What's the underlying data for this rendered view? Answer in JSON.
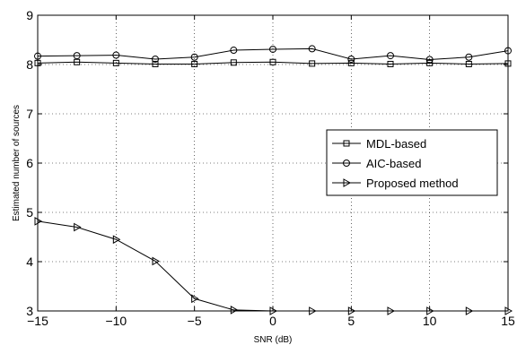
{
  "chart_data": {
    "type": "line",
    "xlabel": "SNR (dB)",
    "ylabel": "Estimated number of sources",
    "xlim": [
      -15,
      15
    ],
    "ylim": [
      3,
      9
    ],
    "xticks": [
      -15,
      -10,
      -5,
      0,
      5,
      10,
      15
    ],
    "yticks": [
      3,
      4,
      5,
      6,
      7,
      8,
      9
    ],
    "grid": true,
    "legend_position": "center-right",
    "x": [
      -15,
      -12.5,
      -10,
      -7.5,
      -5,
      -2.5,
      0,
      2.5,
      5,
      7.5,
      10,
      12.5,
      15
    ],
    "series": [
      {
        "name": "MDL-based",
        "marker": "square",
        "values": [
          8.03,
          8.05,
          8.03,
          8.01,
          8.01,
          8.04,
          8.05,
          8.02,
          8.03,
          8.01,
          8.03,
          8.01,
          8.02
        ]
      },
      {
        "name": "AIC-based",
        "marker": "circle",
        "values": [
          8.17,
          8.18,
          8.19,
          8.11,
          8.15,
          8.29,
          8.31,
          8.32,
          8.11,
          8.18,
          8.1,
          8.15,
          8.28
        ]
      },
      {
        "name": "Proposed method",
        "marker": "triangle-right",
        "values": [
          4.82,
          4.7,
          4.45,
          4.01,
          3.25,
          3.02,
          3.0,
          3.0,
          3.0,
          3.0,
          3.0,
          3.0,
          3.0
        ]
      }
    ]
  }
}
